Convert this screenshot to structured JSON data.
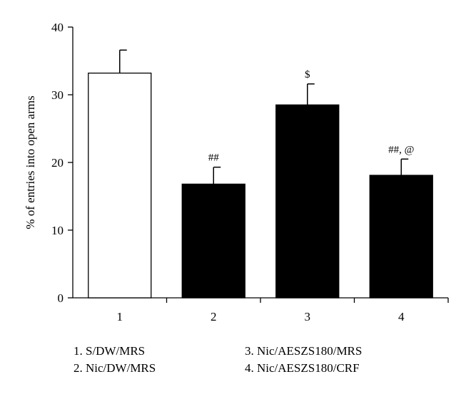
{
  "chart_data": {
    "type": "bar",
    "categories": [
      "1",
      "2",
      "3",
      "4"
    ],
    "values": [
      33.2,
      16.8,
      28.5,
      18.1
    ],
    "errors": [
      3.4,
      2.5,
      3.1,
      2.4
    ],
    "bar_colors": [
      "#ffffff",
      "#000000",
      "#000000",
      "#000000"
    ],
    "annotations": [
      "",
      "##",
      "$",
      "##, @"
    ],
    "ylabel": "% of entries into open arms",
    "xlabel": "",
    "title": "",
    "ylim": [
      0,
      40
    ],
    "yticks": [
      0,
      10,
      20,
      30,
      40
    ],
    "grid": false,
    "legend": [
      "1. S/DW/MRS",
      "2. Nic/DW/MRS",
      "3. Nic/AESZS180/MRS",
      "4. Nic/AESZS180/CRF"
    ]
  }
}
